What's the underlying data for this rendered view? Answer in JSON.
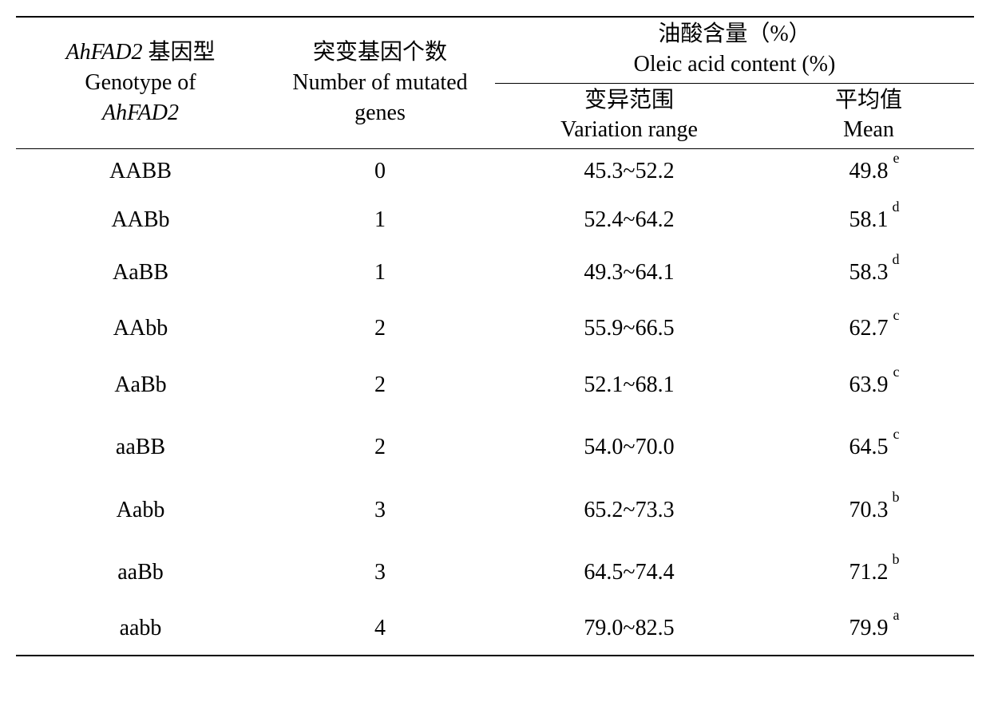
{
  "table": {
    "header": {
      "genotype_cn_line1": "AhFAD2",
      "genotype_cn_line1_suffix": " 基因型",
      "genotype_en_line1": "Genotype of",
      "genotype_en_line2": "AhFAD2",
      "mutated_cn": "突变基因个数",
      "mutated_en_line1": "Number of mutated",
      "mutated_en_line2": "genes",
      "oleic_cn": "油酸含量（%）",
      "oleic_en": "Oleic acid content (%)",
      "range_cn": "变异范围",
      "range_en": "Variation range",
      "mean_cn": "平均值",
      "mean_en": "Mean"
    },
    "rows": [
      {
        "genotype": "AABB",
        "mutated": "0",
        "range": "45.3~52.2",
        "mean": "49.8",
        "sup": "e",
        "spacing": "first"
      },
      {
        "genotype": "AABb",
        "mutated": "1",
        "range": "52.4~64.2",
        "mean": "58.1",
        "sup": "d",
        "spacing": "sm"
      },
      {
        "genotype": "AaBB",
        "mutated": "1",
        "range": "49.3~64.1",
        "mean": "58.3",
        "sup": "d",
        "spacing": "md"
      },
      {
        "genotype": "AAbb",
        "mutated": "2",
        "range": "55.9~66.5",
        "mean": "62.7",
        "sup": "c",
        "spacing": "md"
      },
      {
        "genotype": "AaBb",
        "mutated": "2",
        "range": "52.1~68.1",
        "mean": "63.9",
        "sup": "c",
        "spacing": "md"
      },
      {
        "genotype": "aaBB",
        "mutated": "2",
        "range": "54.0~70.0",
        "mean": "64.5",
        "sup": "c",
        "spacing": "lg"
      },
      {
        "genotype": "Aabb",
        "mutated": "3",
        "range": "65.2~73.3",
        "mean": "70.3",
        "sup": "b",
        "spacing": "lg"
      },
      {
        "genotype": "aaBb",
        "mutated": "3",
        "range": "64.5~74.4",
        "mean": "71.2",
        "sup": "b",
        "spacing": "lg"
      },
      {
        "genotype": "aabb",
        "mutated": "4",
        "range": "79.0~82.5",
        "mean": "79.9",
        "sup": "a",
        "spacing": "md"
      }
    ]
  },
  "styling": {
    "font_family": "Times New Roman, SimSun, serif",
    "font_size_body": 28,
    "font_size_sup": 18,
    "background_color": "#ffffff",
    "text_color": "#000000",
    "border_color": "#000000",
    "top_bottom_border_width": 2.5,
    "mid_border_width": 1.5
  }
}
